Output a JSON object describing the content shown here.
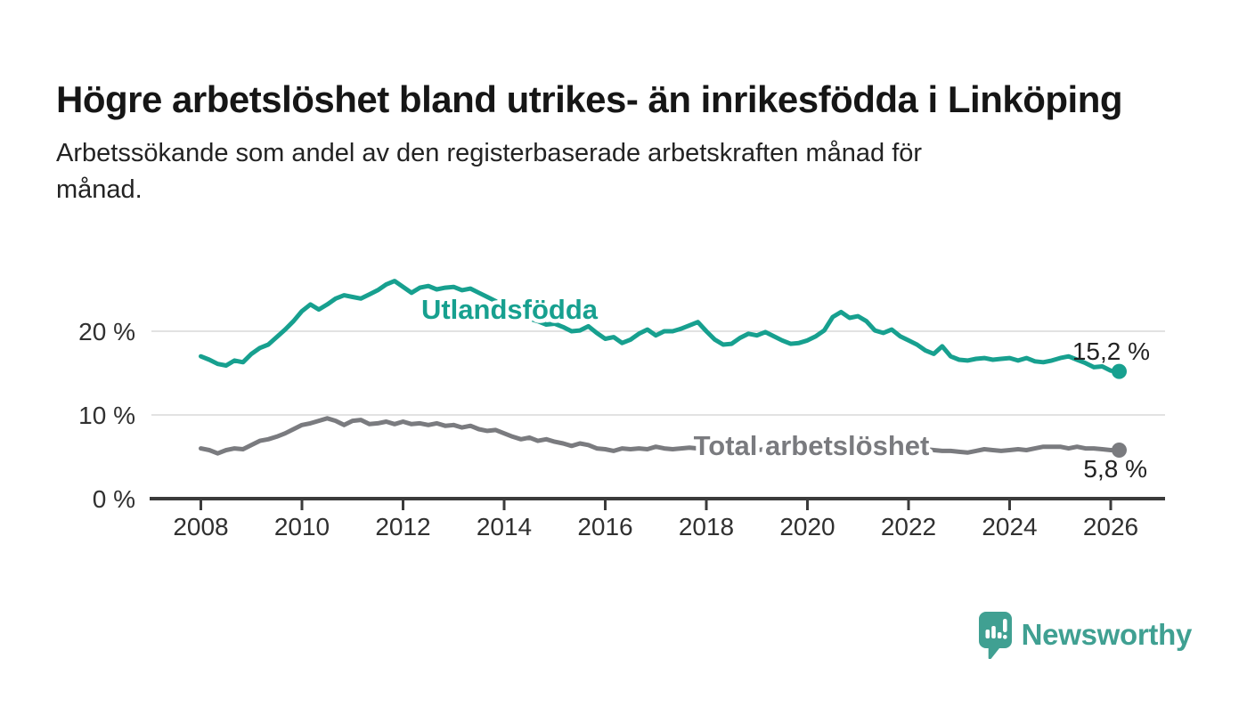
{
  "page": {
    "title": "Högre arbetslöshet bland utrikes- än inrikesfödda i Linköping",
    "subtitle": "Arbetssökande som andel av den registerbaserade arbetskraften månad för månad.",
    "subtitle_lines": [
      "Arbetssökande som andel av den registerbaserade arbetskraften månad för",
      "månad."
    ]
  },
  "branding": {
    "logo_text": "Newsworthy",
    "logo_icon": "speech-bubble-bar-chart-icon",
    "logo_color": "#40a092"
  },
  "colors": {
    "foreign_born_line": "#17a08f",
    "total_line": "#7a7b7f",
    "axis": "#3b3b3b",
    "grid": "#d8d8d8",
    "tick_label": "#303030",
    "end_label": "#222222",
    "background": "#ffffff"
  },
  "chart_data": {
    "type": "line",
    "title": "Högre arbetslöshet bland utrikes- än inrikesfödda i Linköping",
    "subtitle": "Arbetssökande som andel av den registerbaserade arbetskraften månad för månad.",
    "xlabel": "",
    "ylabel": "",
    "grid": "horizontal",
    "legend_position": "inline-labels-on-lines",
    "x_axis": {
      "unit": "year",
      "range": [
        2007.0,
        2027.1
      ],
      "ticks": [
        2008,
        2010,
        2012,
        2014,
        2016,
        2018,
        2020,
        2022,
        2024,
        2026
      ],
      "tick_labels": [
        "2008",
        "2010",
        "2012",
        "2014",
        "2016",
        "2018",
        "2020",
        "2022",
        "2024",
        "2026"
      ]
    },
    "y_axis": {
      "unit": "percent",
      "range": [
        0,
        27.7
      ],
      "ticks": [
        0,
        10,
        20
      ],
      "tick_labels": [
        "0 %",
        "10 %",
        "20 %"
      ]
    },
    "x_start": 2008.0,
    "x_step_years": 0.166667,
    "series": [
      {
        "name": "Utlandsfödda",
        "color": "#17a08f",
        "end_value": 15.2,
        "end_label": "15,2 %",
        "values": [
          17.0,
          16.6,
          16.1,
          15.9,
          16.5,
          16.3,
          17.3,
          18.0,
          18.4,
          19.3,
          20.2,
          21.2,
          22.4,
          23.2,
          22.6,
          23.2,
          23.9,
          24.3,
          24.1,
          23.9,
          24.4,
          24.9,
          25.6,
          26.0,
          25.3,
          24.6,
          25.2,
          25.4,
          25.0,
          25.2,
          25.3,
          24.9,
          25.1,
          24.6,
          24.1,
          23.6,
          23.0,
          22.4,
          21.9,
          21.5,
          21.2,
          20.8,
          20.9,
          20.5,
          20.0,
          20.1,
          20.6,
          19.8,
          19.1,
          19.3,
          18.6,
          19.0,
          19.7,
          20.2,
          19.5,
          20.0,
          20.0,
          20.3,
          20.7,
          21.1,
          20.0,
          19.0,
          18.4,
          18.5,
          19.2,
          19.7,
          19.5,
          19.9,
          19.4,
          18.9,
          18.5,
          18.6,
          18.9,
          19.4,
          20.1,
          21.7,
          22.3,
          21.6,
          21.8,
          21.2,
          20.1,
          19.8,
          20.2,
          19.4,
          18.9,
          18.4,
          17.7,
          17.3,
          18.2,
          17.0,
          16.6,
          16.5,
          16.7,
          16.8,
          16.6,
          16.7,
          16.8,
          16.5,
          16.8,
          16.4,
          16.3,
          16.5,
          16.8,
          17.0,
          16.6,
          16.2,
          15.7,
          15.8,
          15.3,
          15.2
        ]
      },
      {
        "name": "Total arbetslöshet",
        "color": "#7a7b7f",
        "end_value": 5.8,
        "end_label": "5,8 %",
        "values": [
          6.0,
          5.8,
          5.4,
          5.8,
          6.0,
          5.9,
          6.4,
          6.9,
          7.1,
          7.4,
          7.8,
          8.3,
          8.8,
          9.0,
          9.3,
          9.6,
          9.3,
          8.8,
          9.3,
          9.4,
          8.9,
          9.0,
          9.2,
          8.9,
          9.2,
          8.9,
          9.0,
          8.8,
          9.0,
          8.7,
          8.8,
          8.5,
          8.7,
          8.3,
          8.1,
          8.2,
          7.8,
          7.4,
          7.1,
          7.3,
          6.9,
          7.1,
          6.8,
          6.6,
          6.3,
          6.6,
          6.4,
          6.0,
          5.9,
          5.7,
          6.0,
          5.9,
          6.0,
          5.9,
          6.2,
          6.0,
          5.9,
          6.0,
          6.1,
          6.0,
          5.9,
          6.0,
          5.8,
          5.9,
          6.0,
          5.9,
          5.8,
          5.9,
          6.0,
          5.9,
          6.0,
          6.1,
          6.2,
          6.4,
          6.6,
          6.5,
          6.4,
          6.3,
          6.2,
          6.1,
          6.0,
          5.9,
          5.8,
          5.9,
          5.8,
          5.9,
          5.9,
          5.8,
          5.7,
          5.7,
          5.6,
          5.5,
          5.7,
          5.9,
          5.8,
          5.7,
          5.8,
          5.9,
          5.8,
          6.0,
          6.2,
          6.2,
          6.2,
          6.0,
          6.2,
          6.0,
          6.0,
          5.9,
          5.8,
          5.8
        ]
      }
    ]
  }
}
